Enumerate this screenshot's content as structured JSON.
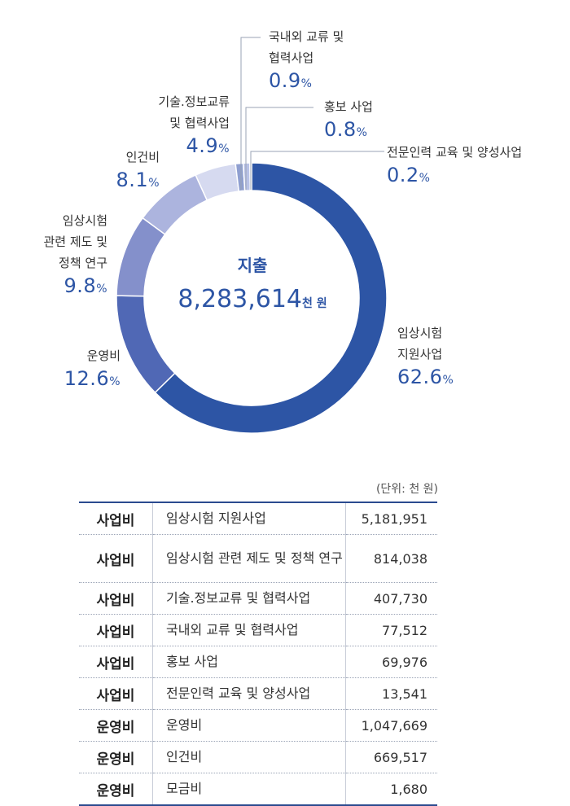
{
  "chart_data": {
    "type": "pie",
    "title": "지출",
    "total": "8,283,614",
    "total_unit": "천 원",
    "slices": [
      {
        "label": "임상시험 지원사업",
        "percent": 62.6,
        "color": "#2d55a5"
      },
      {
        "label": "운영비",
        "percent": 12.6,
        "color": "#5068b5"
      },
      {
        "label": "임상시험 관련 제도 및 정책 연구",
        "percent": 9.8,
        "color": "#8490cb"
      },
      {
        "label": "인건비",
        "percent": 8.1,
        "color": "#acb4de"
      },
      {
        "label": "기술.정보교류 및 협력사업",
        "percent": 4.9,
        "color": "#d6daf0"
      },
      {
        "label": "국내외 교류 및 협력사업",
        "percent": 0.9,
        "color": "#8f9fd0"
      },
      {
        "label": "홍보 사업",
        "percent": 0.8,
        "color": "#b8c2e6"
      },
      {
        "label": "전문인력 교육 및 양성사업",
        "percent": 0.2,
        "color": "#6a7fc2"
      }
    ]
  },
  "labels": {
    "clinical_support": {
      "lines": [
        "임상시험",
        "지원사업"
      ],
      "pct": "62.6"
    },
    "operating": {
      "lines": [
        "운영비"
      ],
      "pct": "12.6"
    },
    "policy": {
      "lines": [
        "임상시험",
        "관련 제도 및",
        "정책 연구"
      ],
      "pct": "9.8"
    },
    "personnel": {
      "lines": [
        "인건비"
      ],
      "pct": "8.1"
    },
    "tech_exchange": {
      "lines": [
        "기술.정보교류",
        "및 협력사업"
      ],
      "pct": "4.9"
    },
    "domestic_intl": {
      "lines": [
        "국내외 교류 및",
        "협력사업"
      ],
      "pct": "0.9"
    },
    "pr": {
      "lines": [
        "홍보 사업"
      ],
      "pct": "0.8"
    },
    "training": {
      "lines": [
        "전문인력 교육 및 양성사업"
      ],
      "pct": "0.2"
    },
    "pct_sign": "%"
  },
  "unit_note": "(단위: 천 원)",
  "table": {
    "rows": [
      {
        "category": "사업비",
        "item": "임상시험 지원사업",
        "amount": "5,181,951"
      },
      {
        "category": "사업비",
        "item": "임상시험 관련 제도 및 정책 연구",
        "amount": "814,038"
      },
      {
        "category": "사업비",
        "item": "기술.정보교류 및 협력사업",
        "amount": "407,730"
      },
      {
        "category": "사업비",
        "item": "국내외 교류 및 협력사업",
        "amount": "77,512"
      },
      {
        "category": "사업비",
        "item": "홍보 사업",
        "amount": "69,976"
      },
      {
        "category": "사업비",
        "item": "전문인력 교육 및 양성사업",
        "amount": "13,541"
      },
      {
        "category": "운영비",
        "item": "운영비",
        "amount": "1,047,669"
      },
      {
        "category": "운영비",
        "item": "인건비",
        "amount": "669,517"
      },
      {
        "category": "운영비",
        "item": "모금비",
        "amount": "1,680"
      }
    ]
  }
}
